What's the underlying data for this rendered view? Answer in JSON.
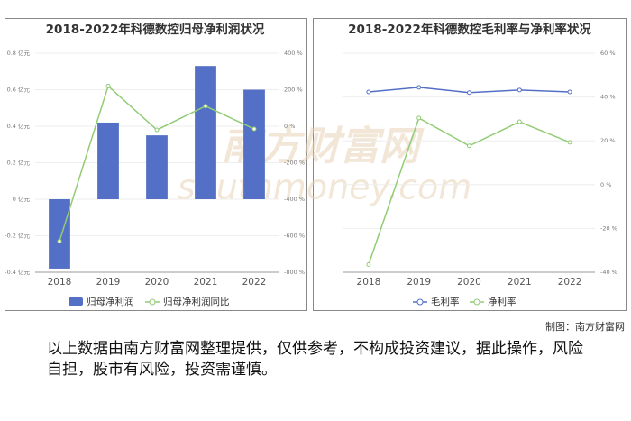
{
  "chart_data": [
    {
      "type": "bar",
      "title": "2018-2022年科德数控归母净利润状况",
      "categories": [
        "2018",
        "2019",
        "2020",
        "2021",
        "2022"
      ],
      "series": [
        {
          "name": "归母净利润",
          "color": "#5470c6",
          "type": "bar",
          "values": [
            -0.38,
            0.42,
            0.35,
            0.73,
            0.6
          ]
        },
        {
          "name": "归母净利润同比",
          "color": "#91cc75",
          "type": "line",
          "axis": "y2",
          "values": [
            -630,
            220,
            -20,
            110,
            -15
          ]
        }
      ],
      "ylim": [
        -0.4,
        0.8
      ],
      "yticks": [
        {
          "value": -0.4,
          "label": "-0.4 亿元"
        },
        {
          "value": -0.2,
          "label": "-0.2 亿元"
        },
        {
          "value": 0,
          "label": "0 亿元"
        },
        {
          "value": 0.2,
          "label": "0.2 亿元"
        },
        {
          "value": 0.4,
          "label": "0.4 亿元"
        },
        {
          "value": 0.6,
          "label": "0.6 亿元"
        },
        {
          "value": 0.8,
          "label": "0.8 亿元"
        }
      ],
      "y2lim": [
        -800,
        400
      ],
      "y2ticks": [
        {
          "value": -800,
          "label": "-800 %"
        },
        {
          "value": -600,
          "label": "-600 %"
        },
        {
          "value": -400,
          "label": "-400 %"
        },
        {
          "value": -200,
          "label": "-200 %"
        },
        {
          "value": 0,
          "label": "0 %"
        },
        {
          "value": 200,
          "label": "200 %"
        },
        {
          "value": 400,
          "label": "400 %"
        }
      ],
      "grid": true
    },
    {
      "type": "line",
      "title": "2018-2022年科德数控毛利率与净利率状况",
      "categories": [
        "2018",
        "2019",
        "2020",
        "2021",
        "2022"
      ],
      "series": [
        {
          "name": "毛利率",
          "color": "#5470c6",
          "type": "line",
          "axis": "y2",
          "values": [
            42.3,
            44.4,
            42,
            43.2,
            42.3
          ]
        },
        {
          "name": "净利率",
          "color": "#91cc75",
          "type": "line",
          "axis": "y2",
          "values": [
            -36.5,
            30.4,
            17.7,
            28.7,
            19.3
          ]
        }
      ],
      "y2lim": [
        -40,
        60
      ],
      "y2ticks": [
        {
          "value": -40,
          "label": "-40 %"
        },
        {
          "value": -20,
          "label": "-20 %"
        },
        {
          "value": 0,
          "label": "0 %"
        },
        {
          "value": 20,
          "label": "20 %"
        },
        {
          "value": 40,
          "label": "40 %"
        },
        {
          "value": 60,
          "label": "60 %"
        }
      ],
      "grid": true
    }
  ],
  "watermark": {
    "cn": "南方财富网",
    "en": "southmoney.com"
  },
  "footer": {
    "credit": "制图：南方财富网",
    "disclaimer": "以上数据由南方财富网整理提供，仅供参考，不构成投资建议，据此操作，风险自担，股市有风险，投资需谨慎。"
  }
}
